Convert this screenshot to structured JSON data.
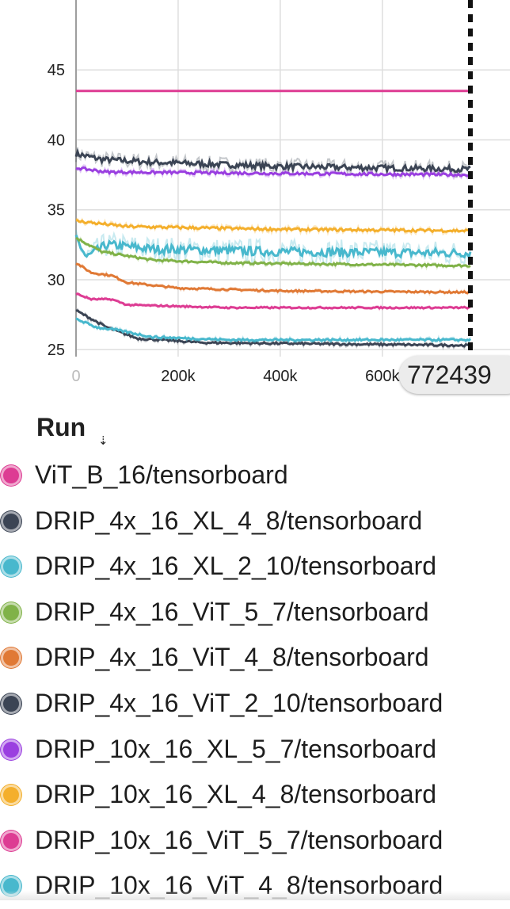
{
  "chart_data": {
    "type": "line",
    "xlim": [
      0,
      850000
    ],
    "ylim": [
      24.5,
      50
    ],
    "x_ticks": [
      {
        "value": 0,
        "label": "0"
      },
      {
        "value": 200000,
        "label": "200k"
      },
      {
        "value": 400000,
        "label": "400k"
      },
      {
        "value": 600000,
        "label": "600k"
      }
    ],
    "y_ticks": [
      25,
      30,
      35,
      40,
      45
    ],
    "grid": true,
    "x_end": 772439,
    "hover_step": 772439,
    "hover_step_label": "772439",
    "series": [
      {
        "name": "ViT_B_16/tensorboard",
        "color": "#dd3c93",
        "noise": 0,
        "points": [
          [
            0,
            43.5
          ],
          [
            772439,
            43.5
          ]
        ]
      },
      {
        "name": "DRIP_4x_16_XL_4_8/tensorboard",
        "color": "#3b4454",
        "noise": 0.45,
        "points": [
          [
            0,
            39
          ],
          [
            50000,
            38.6
          ],
          [
            150000,
            38.4
          ],
          [
            400000,
            38.1
          ],
          [
            772439,
            37.9
          ]
        ]
      },
      {
        "name": "DRIP_4x_16_XL_2_10/tensorboard",
        "color": "#48b8cd",
        "noise": 0.7,
        "points": [
          [
            0,
            33
          ],
          [
            20000,
            31.6
          ],
          [
            60000,
            32.5
          ],
          [
            150000,
            32.2
          ],
          [
            400000,
            32.0
          ],
          [
            772439,
            31.9
          ]
        ]
      },
      {
        "name": "DRIP_4x_16_ViT_5_7/tensorboard",
        "color": "#80b248",
        "noise": 0.15,
        "points": [
          [
            0,
            33
          ],
          [
            50000,
            32
          ],
          [
            150000,
            31.4
          ],
          [
            300000,
            31.2
          ],
          [
            772439,
            31.0
          ]
        ]
      },
      {
        "name": "DRIP_4x_16_ViT_4_8/tensorboard",
        "color": "#e07935",
        "noise": 0.12,
        "points": [
          [
            0,
            31.2
          ],
          [
            30000,
            30.5
          ],
          [
            70000,
            30.3
          ],
          [
            100000,
            29.8
          ],
          [
            200000,
            29.4
          ],
          [
            400000,
            29.2
          ],
          [
            772439,
            29.1
          ]
        ]
      },
      {
        "name": "DRIP_4x_16_ViT_2_10/tensorboard",
        "color": "#3b4454",
        "noise": 0.15,
        "points": [
          [
            0,
            27.8
          ],
          [
            40000,
            27.0
          ],
          [
            60000,
            26.6
          ],
          [
            120000,
            25.8
          ],
          [
            250000,
            25.5
          ],
          [
            772439,
            25.3
          ]
        ]
      },
      {
        "name": "DRIP_10x_16_XL_5_7/tensorboard",
        "color": "#9a3fe0",
        "noise": 0.2,
        "points": [
          [
            0,
            38
          ],
          [
            60000,
            37.7
          ],
          [
            400000,
            37.6
          ],
          [
            772439,
            37.5
          ]
        ]
      },
      {
        "name": "DRIP_10x_16_XL_4_8/tensorboard",
        "color": "#f4af2c",
        "noise": 0.2,
        "points": [
          [
            0,
            34.2
          ],
          [
            100000,
            33.8
          ],
          [
            400000,
            33.6
          ],
          [
            772439,
            33.5
          ]
        ]
      },
      {
        "name": "DRIP_10x_16_ViT_5_7/tensorboard",
        "color": "#dd3c93",
        "noise": 0.1,
        "points": [
          [
            0,
            29.0
          ],
          [
            30000,
            28.6
          ],
          [
            70000,
            28.6
          ],
          [
            100000,
            28.2
          ],
          [
            300000,
            28.0
          ],
          [
            772439,
            28.0
          ]
        ]
      },
      {
        "name": "DRIP_10x_16_ViT_4_8/tensorboard",
        "color": "#48b8cd",
        "noise": 0.15,
        "points": [
          [
            0,
            27.2
          ],
          [
            40000,
            26.6
          ],
          [
            80000,
            26.4
          ],
          [
            150000,
            25.9
          ],
          [
            300000,
            25.7
          ],
          [
            772439,
            25.7
          ]
        ]
      }
    ]
  },
  "legend": {
    "header": "Run",
    "sort_icon": "arrow-down-icon"
  }
}
